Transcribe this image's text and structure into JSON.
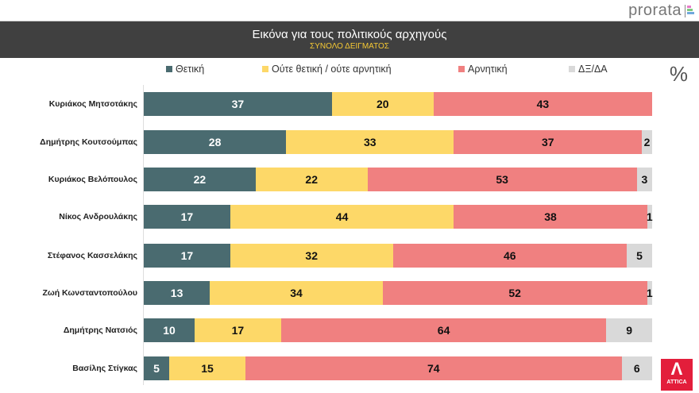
{
  "header": {
    "logo": "prorata",
    "title": "Εικόνα για τους πολιτικούς αρχηγούς",
    "subtitle": "ΣΥΝΟΛΟ ΔΕΙΓΜΑΤΟΣ",
    "unit": "%",
    "brand": "ATTICA"
  },
  "chart_data": {
    "type": "bar",
    "orientation": "horizontal-stacked-100",
    "title": "Εικόνα για τους πολιτικούς αρχηγούς",
    "subtitle": "ΣΥΝΟΛΟ ΔΕΙΓΜΑΤΟΣ",
    "legend_position": "top",
    "grid": false,
    "xlim": [
      0,
      100
    ],
    "categories": [
      "Κυριάκος Μητσοτάκης",
      "Δημήτρης Κουτσούμπας",
      "Κυριάκος Βελόπουλος",
      "Νίκος Ανδρουλάκης",
      "Στέφανος Κασσελάκης",
      "Ζωή Κωνσταντοπούλου",
      "Δημήτρης Νατσιός",
      "Βασίλης Στίγκας"
    ],
    "series": [
      {
        "name": "Θετική",
        "color": "#4a6b70",
        "text_color": "#ffffff",
        "values": [
          37,
          28,
          22,
          17,
          17,
          13,
          10,
          5
        ]
      },
      {
        "name": "Ούτε θετική / ούτε αρνητική",
        "color": "#fdd868",
        "text_color": "#111111",
        "values": [
          20,
          33,
          22,
          44,
          32,
          34,
          17,
          15
        ]
      },
      {
        "name": "Αρνητική",
        "color": "#f08080",
        "text_color": "#111111",
        "values": [
          43,
          37,
          53,
          38,
          46,
          52,
          64,
          74
        ]
      },
      {
        "name": "ΔΞ/ΔΑ",
        "color": "#d9d9d9",
        "text_color": "#111111",
        "values": [
          0,
          2,
          3,
          1,
          5,
          1,
          9,
          6
        ]
      }
    ]
  }
}
